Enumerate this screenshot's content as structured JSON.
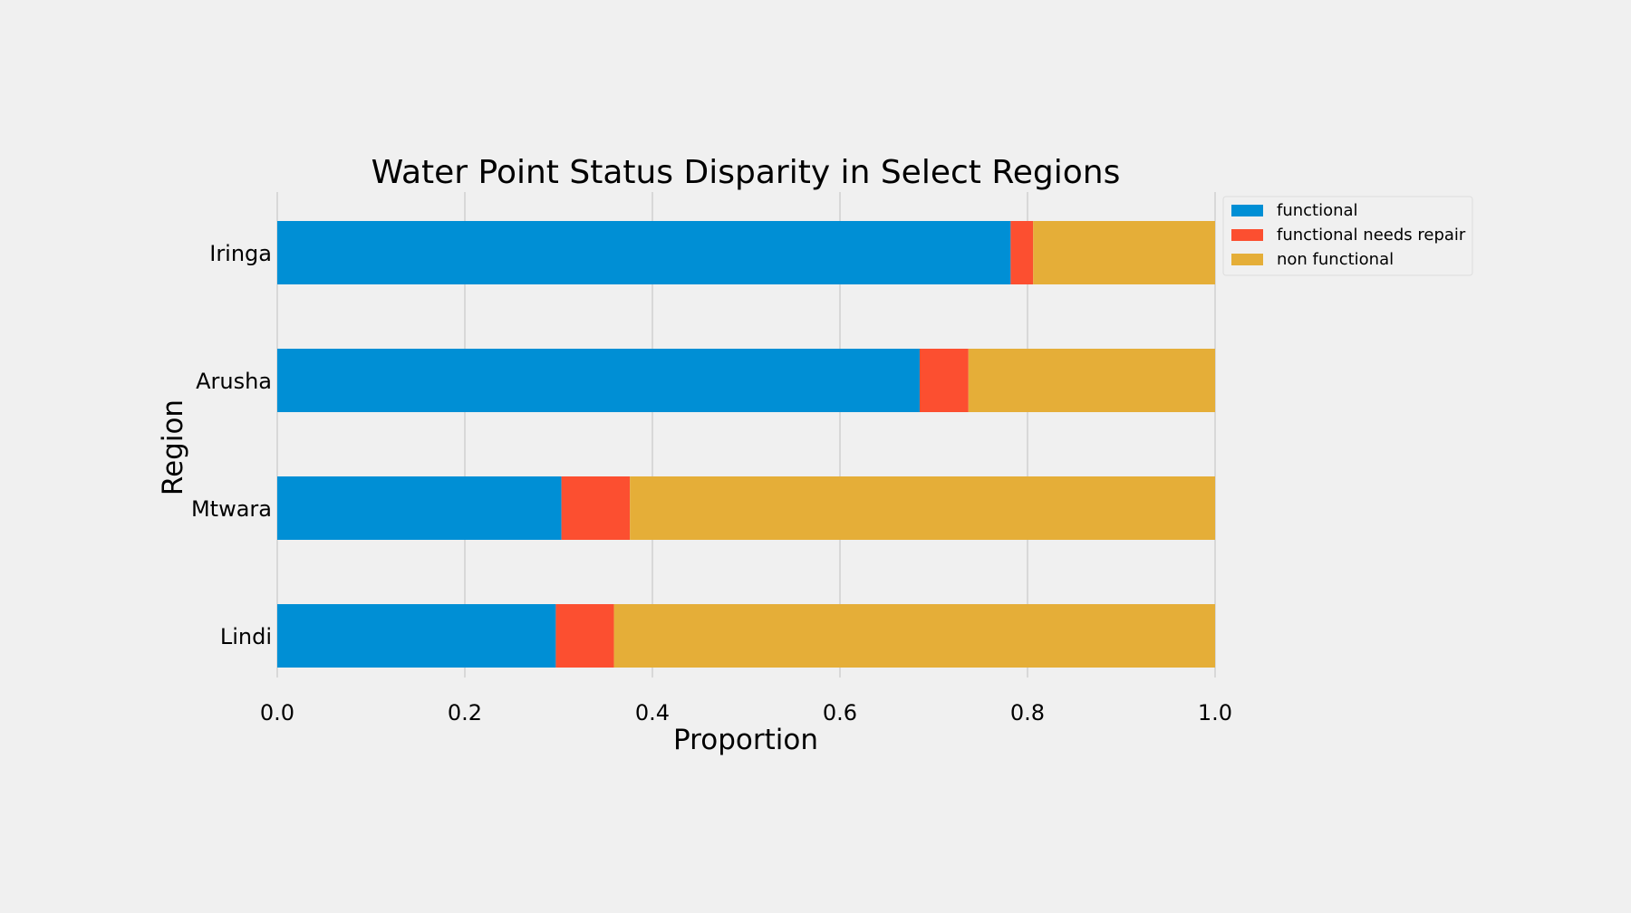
{
  "chart_data": {
    "type": "bar",
    "orientation": "horizontal",
    "stacked": true,
    "title": "Water Point Status Disparity in Select Regions",
    "xlabel": "Proportion",
    "ylabel": "Region",
    "xlim": [
      0,
      1
    ],
    "xticks": [
      "0.0",
      "0.2",
      "0.4",
      "0.6",
      "0.8",
      "1.0"
    ],
    "categories": [
      "Iringa",
      "Arusha",
      "Mtwara",
      "Lindi"
    ],
    "series": [
      {
        "name": "functional",
        "color": "#008fd5",
        "values": [
          0.782,
          0.685,
          0.303,
          0.297
        ]
      },
      {
        "name": "functional needs repair",
        "color": "#fc4f30",
        "values": [
          0.024,
          0.052,
          0.073,
          0.062
        ]
      },
      {
        "name": "non functional",
        "color": "#e5ae38",
        "values": [
          0.194,
          0.263,
          0.624,
          0.641
        ]
      }
    ],
    "grid": "vertical",
    "legend_position": "upper-right-outside"
  }
}
